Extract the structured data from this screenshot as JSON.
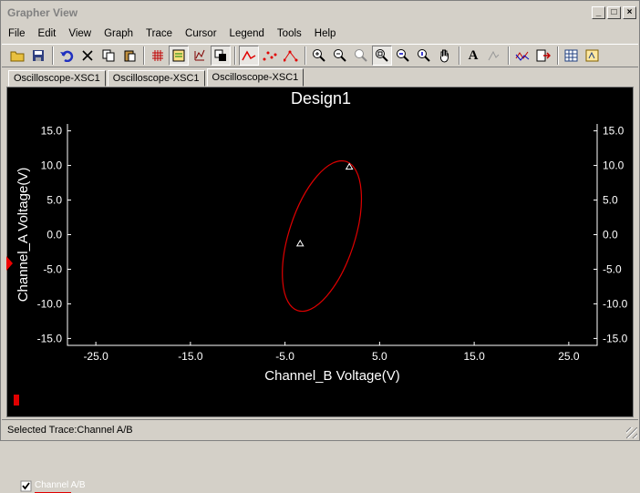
{
  "window": {
    "title": "Grapher View",
    "controls": [
      "_",
      "□",
      "×"
    ]
  },
  "menu": [
    "File",
    "Edit",
    "View",
    "Graph",
    "Trace",
    "Cursor",
    "Legend",
    "Tools",
    "Help"
  ],
  "tabs": [
    {
      "label": "Oscilloscope-XSC1",
      "active": false
    },
    {
      "label": "Oscilloscope-XSC1",
      "active": false
    },
    {
      "label": "Oscilloscope-XSC1",
      "active": true
    }
  ],
  "chart_data": {
    "type": "line",
    "title": "Design1",
    "xlabel": "Channel_B Voltage(V)",
    "ylabel": "Channel_A Voltage(V)",
    "xlim": [
      -28,
      28
    ],
    "ylim": [
      -16,
      16
    ],
    "xticks": [
      "-25.0",
      "-15.0",
      "-5.0",
      "5.0",
      "15.0",
      "25.0"
    ],
    "yticks": [
      "15.0",
      "10.0",
      "5.0",
      "0.0",
      "-5.0",
      "-10.0",
      "-15.0"
    ],
    "grid": false,
    "background": "#000000",
    "series": [
      {
        "name": "Channel A/B",
        "color": "#e00000",
        "shape": "ellipse",
        "center": [
          -1.1,
          -0.2
        ],
        "cursor_points": [
          [
            1.8,
            9.8
          ],
          [
            -3.4,
            -1.3
          ]
        ]
      }
    ]
  },
  "legend": {
    "label": "Channel A/B",
    "checked": true
  },
  "status": {
    "text": "Selected Trace:Channel A/B"
  }
}
